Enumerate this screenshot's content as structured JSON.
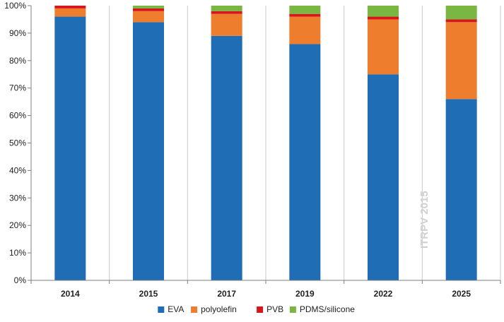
{
  "chart_data": {
    "type": "bar",
    "stacked": true,
    "categories": [
      "2014",
      "2015",
      "2017",
      "2019",
      "2022",
      "2025"
    ],
    "series": [
      {
        "name": "EVA",
        "color": "#1f6db5",
        "values": [
          96,
          94,
          89,
          86,
          75,
          66
        ]
      },
      {
        "name": "polyolefin",
        "color": "#ef7d2e",
        "values": [
          3,
          4,
          8,
          10,
          20,
          28
        ]
      },
      {
        "name": "PVB",
        "color": "#d7161b",
        "values": [
          1,
          1,
          1,
          1,
          1,
          1
        ]
      },
      {
        "name": "PDMS/silicone",
        "color": "#7ab642",
        "values": [
          0,
          1,
          2,
          3,
          4,
          5
        ]
      }
    ],
    "ylim": [
      0,
      100
    ],
    "yticks": [
      "0%",
      "10%",
      "20%",
      "30%",
      "40%",
      "50%",
      "60%",
      "70%",
      "80%",
      "90%",
      "100%"
    ],
    "xlabel": "",
    "ylabel": "",
    "title": "",
    "legend_position": "bottom",
    "grid": "vertical-category-separators",
    "watermark": "ITRPV 2015"
  }
}
